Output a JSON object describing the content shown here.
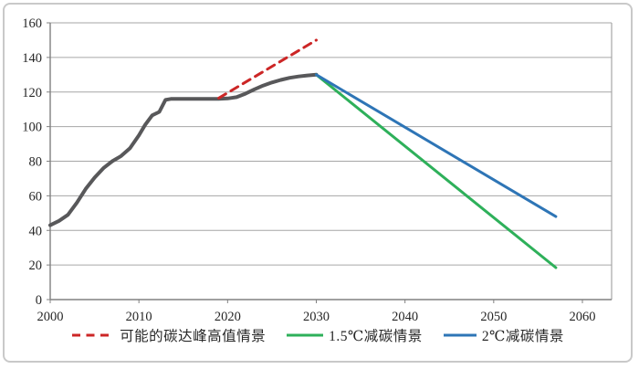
{
  "chart_data": {
    "type": "line",
    "title": "",
    "xlabel": "",
    "ylabel": "",
    "xlim": [
      2000,
      2060
    ],
    "ylim": [
      0,
      160
    ],
    "x_ticks": [
      2000,
      2010,
      2020,
      2030,
      2040,
      2050,
      2060
    ],
    "y_ticks": [
      0,
      20,
      40,
      60,
      80,
      100,
      120,
      140,
      160
    ],
    "grid": "horizontal",
    "grid_color": "#a6a6a6",
    "axis_color": "#808080",
    "legend_position": "bottom",
    "series": [
      {
        "key": "historical-emissions",
        "color": "#58585a",
        "width": 4,
        "dash": null,
        "points": [
          [
            2000,
            43
          ],
          [
            2001,
            45.5
          ],
          [
            2002,
            49
          ],
          [
            2003,
            56
          ],
          [
            2004,
            64
          ],
          [
            2005,
            70.5
          ],
          [
            2006,
            76
          ],
          [
            2007,
            80
          ],
          [
            2008,
            83
          ],
          [
            2009,
            87.5
          ],
          [
            2010,
            95
          ],
          [
            2010.7,
            101
          ],
          [
            2011.5,
            106.5
          ],
          [
            2012.3,
            108.5
          ],
          [
            2013,
            115.5
          ],
          [
            2013.6,
            116
          ],
          [
            2019,
            116
          ],
          [
            2020,
            116.3
          ],
          [
            2021,
            117
          ],
          [
            2022,
            119
          ],
          [
            2023,
            121.5
          ],
          [
            2024,
            123.7
          ],
          [
            2025,
            125.5
          ],
          [
            2026,
            127
          ],
          [
            2027,
            128.2
          ],
          [
            2028,
            129
          ],
          [
            2029,
            129.6
          ],
          [
            2030,
            130
          ]
        ]
      },
      {
        "key": "peak-high-scenario",
        "name": "可能的碳达峰高值情景",
        "color": "#cc2626",
        "width": 3,
        "dash": "9 6.5",
        "points": [
          [
            2019,
            116.5
          ],
          [
            2030,
            150
          ]
        ]
      },
      {
        "key": "reduction-1p5c-scenario",
        "name": "1.5℃减碳情景",
        "color": "#2eb05a",
        "width": 3,
        "dash": null,
        "points": [
          [
            2030,
            130
          ],
          [
            2057,
            18.5
          ]
        ]
      },
      {
        "key": "reduction-2c-scenario",
        "name": "2℃减碳情景",
        "color": "#2e75b6",
        "width": 3,
        "dash": null,
        "points": [
          [
            2030,
            130
          ],
          [
            2057,
            48
          ]
        ]
      }
    ],
    "legend": [
      {
        "label": "可能的碳达峰高值情景",
        "series": 1
      },
      {
        "label": "1.5℃减碳情景",
        "series": 2
      },
      {
        "label": "2℃减碳情景",
        "series": 3
      }
    ]
  }
}
